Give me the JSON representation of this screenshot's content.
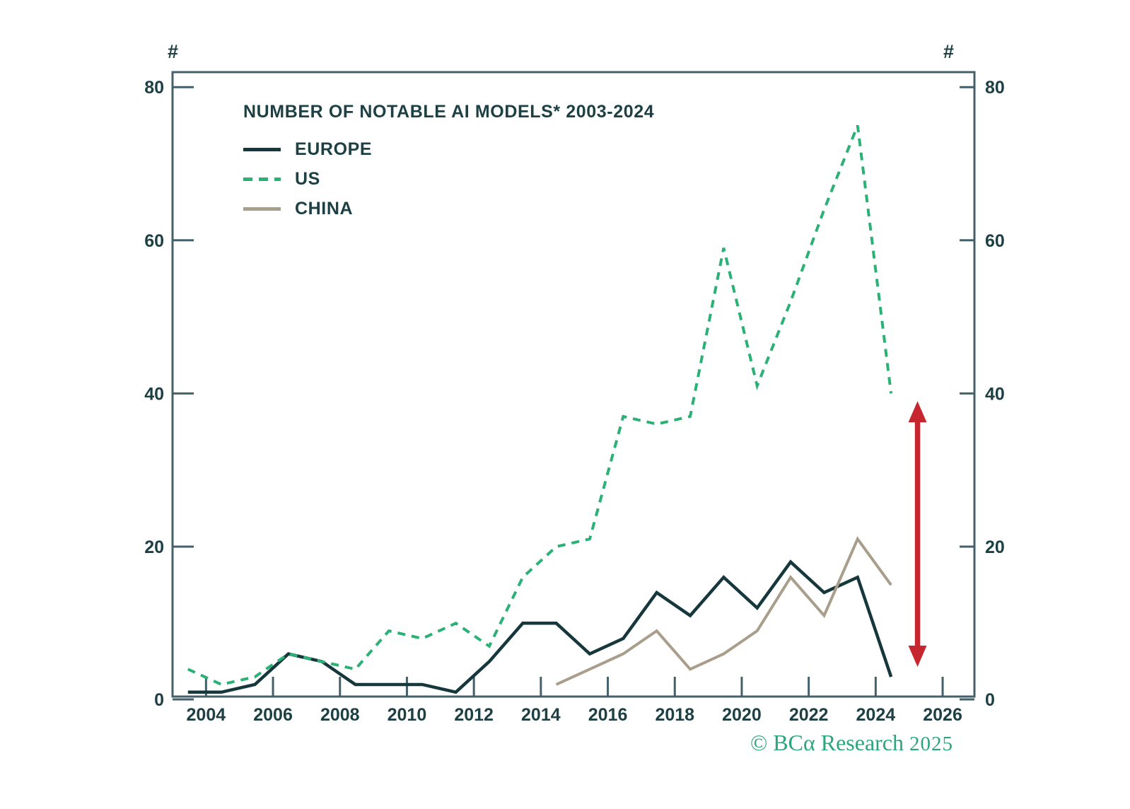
{
  "axis_unit_label": "#",
  "chart": {
    "title": "NUMBER OF NOTABLE AI MODELS* 2003-2024",
    "legend": [
      {
        "label": "EUROPE",
        "style": "solid",
        "color": "#16373c"
      },
      {
        "label": "US",
        "style": "dashed",
        "color": "#2bb175"
      },
      {
        "label": "CHINA",
        "style": "solid",
        "color": "#a99e8c"
      }
    ]
  },
  "chart_data": {
    "type": "line",
    "title": "NUMBER OF NOTABLE AI MODELS* 2003-2024",
    "y_unit": "#",
    "x": [
      2003,
      2004,
      2005,
      2006,
      2007,
      2008,
      2009,
      2010,
      2011,
      2012,
      2013,
      2014,
      2015,
      2016,
      2017,
      2018,
      2019,
      2020,
      2021,
      2022,
      2023,
      2024
    ],
    "series": [
      {
        "name": "EUROPE",
        "color": "#16373c",
        "line_style": "solid",
        "width": 4.5,
        "values": [
          1,
          1,
          2,
          6,
          5,
          2,
          2,
          2,
          1,
          5,
          10,
          10,
          6,
          8,
          14,
          11,
          16,
          12,
          18,
          14,
          16,
          3
        ]
      },
      {
        "name": "US",
        "color": "#2bb175",
        "line_style": "dashed",
        "width": 4,
        "values": [
          4,
          2,
          3,
          6,
          5,
          4,
          9,
          8,
          10,
          7,
          16,
          20,
          21,
          37,
          36,
          37,
          59,
          41,
          52,
          64,
          75,
          40
        ]
      },
      {
        "name": "CHINA",
        "color": "#a99e8c",
        "line_style": "solid",
        "width": 4,
        "values": [
          null,
          null,
          null,
          null,
          null,
          null,
          null,
          null,
          null,
          null,
          null,
          2,
          4,
          6,
          9,
          4,
          6,
          9,
          16,
          11,
          21,
          15
        ]
      }
    ],
    "x_ticks": [
      2004,
      2006,
      2008,
      2010,
      2012,
      2014,
      2016,
      2018,
      2020,
      2022,
      2024,
      2026
    ],
    "y_ticks": [
      0,
      20,
      40,
      60,
      80
    ],
    "ylim": [
      0,
      82
    ],
    "xlim": [
      2003,
      2026.9
    ],
    "grid": false,
    "legend_position": "top-left-inside",
    "annotations": [
      {
        "type": "double-arrow",
        "x": 2025.25,
        "y_from": 4.3,
        "y_to": 39,
        "color": "#c5262f",
        "description": "vertical double-headed arrow highlighting 2024 gap between US and Europe/China"
      }
    ],
    "axis_color": "#44606a",
    "label_color": "#1d4045"
  },
  "watermark": {
    "text": "© BCα Research",
    "year": "2025",
    "color": "#2aa67c"
  }
}
